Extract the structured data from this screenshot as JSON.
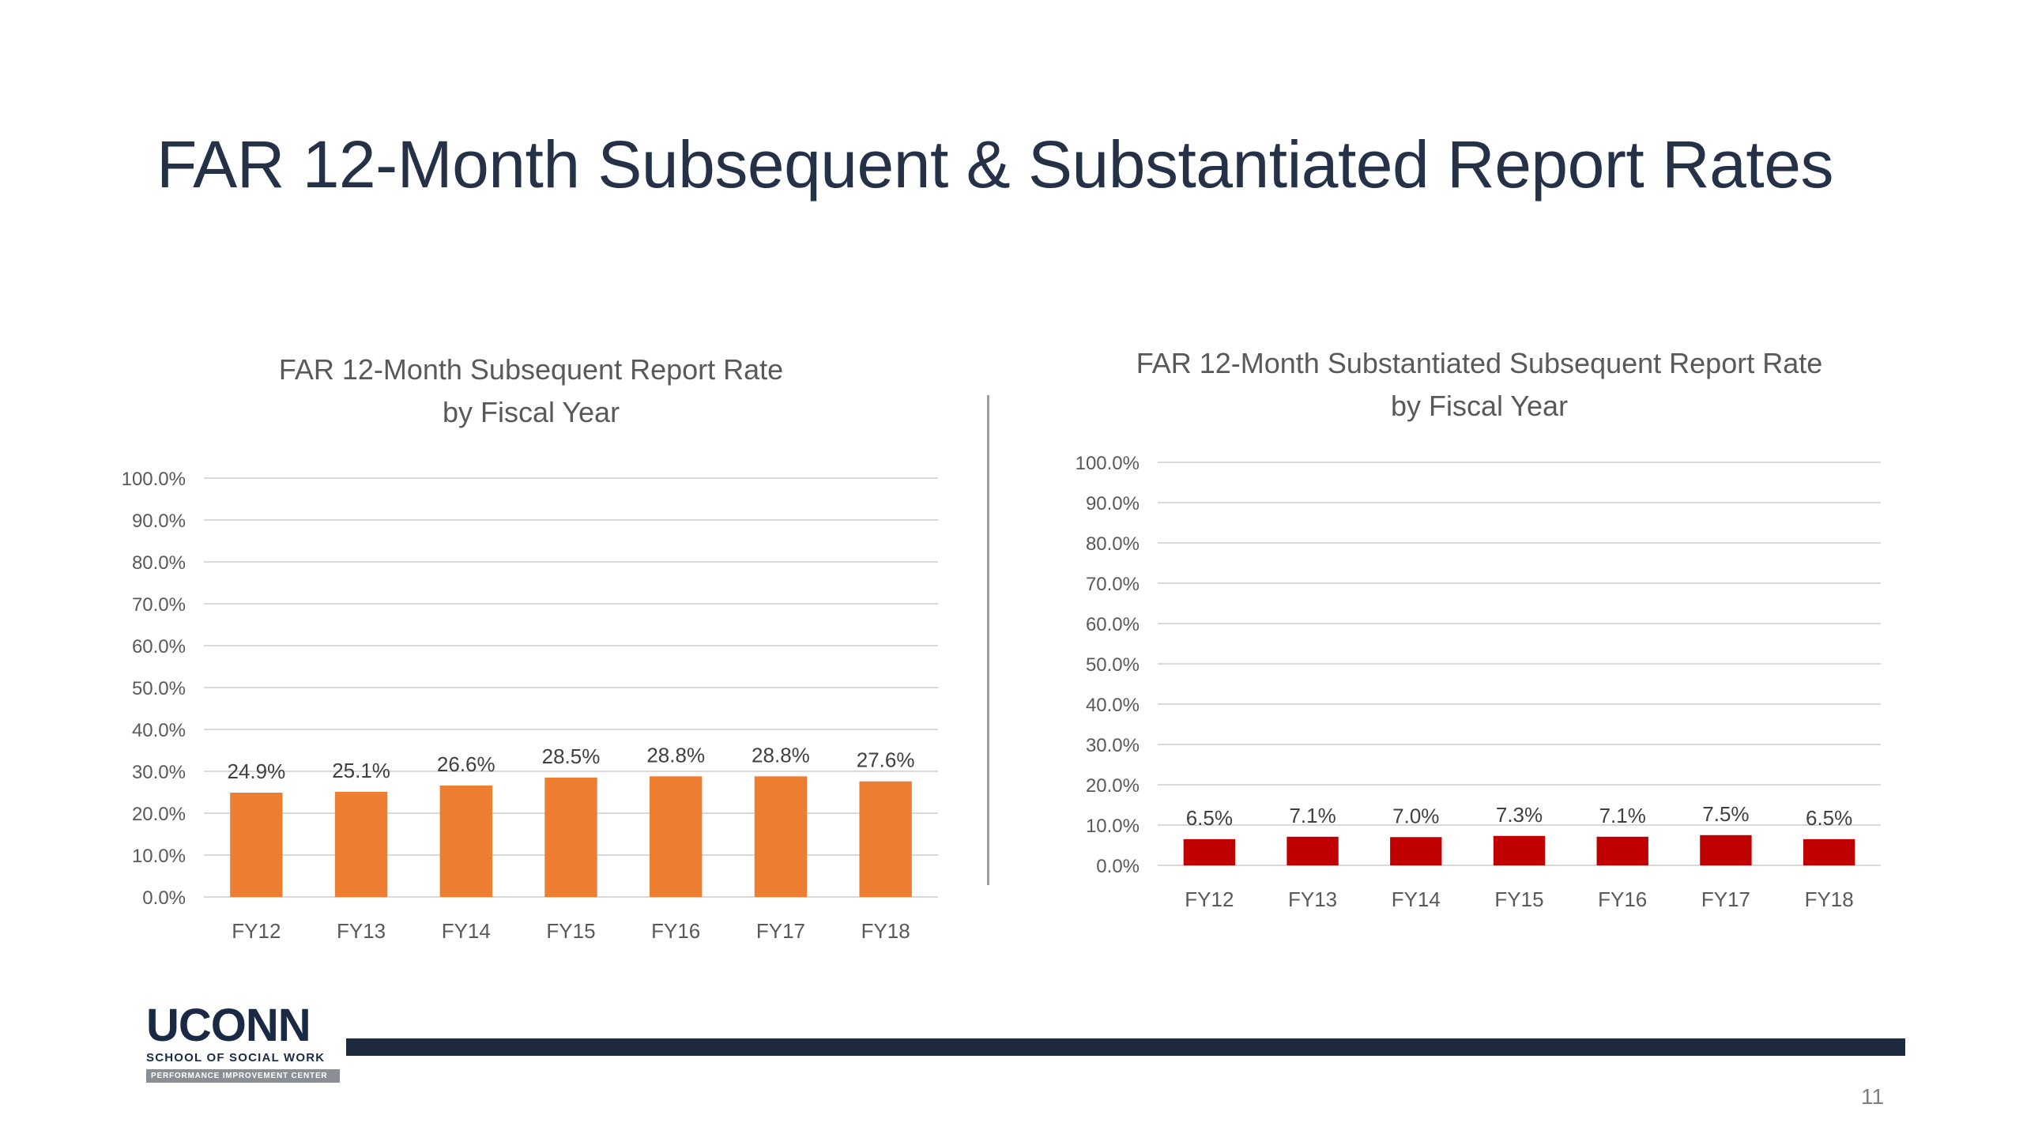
{
  "slide": {
    "title": "FAR 12-Month Subsequent & Substantiated Report Rates",
    "page_number": "11"
  },
  "logo": {
    "wordmark": "UCONN",
    "subtitle": "SCHOOL OF SOCIAL WORK",
    "band": "PERFORMANCE IMPROVEMENT CENTER"
  },
  "colors": {
    "title": "#243147",
    "left_bars": "#ED7D31",
    "right_bars": "#C00000",
    "footer_bar": "#1E2A3D"
  },
  "chart_data": [
    {
      "type": "bar",
      "title_lines": [
        "FAR 12-Month Subsequent Report Rate",
        "by Fiscal Year"
      ],
      "categories": [
        "FY12",
        "FY13",
        "FY14",
        "FY15",
        "FY16",
        "FY17",
        "FY18"
      ],
      "values": [
        24.9,
        25.1,
        26.6,
        28.5,
        28.8,
        28.8,
        27.6
      ],
      "value_labels": [
        "24.9%",
        "25.1%",
        "26.6%",
        "28.5%",
        "28.8%",
        "28.8%",
        "27.6%"
      ],
      "ylim": [
        0,
        100
      ],
      "y_ticks": [
        0,
        10,
        20,
        30,
        40,
        50,
        60,
        70,
        80,
        90,
        100
      ],
      "y_tick_labels": [
        "0.0%",
        "10.0%",
        "20.0%",
        "30.0%",
        "40.0%",
        "50.0%",
        "60.0%",
        "70.0%",
        "80.0%",
        "90.0%",
        "100.0%"
      ],
      "grid": true,
      "color": "#ED7D31"
    },
    {
      "type": "bar",
      "title_lines": [
        "FAR 12-Month Substantiated Subsequent Report Rate",
        "by Fiscal Year"
      ],
      "categories": [
        "FY12",
        "FY13",
        "FY14",
        "FY15",
        "FY16",
        "FY17",
        "FY18"
      ],
      "values": [
        6.5,
        7.1,
        7.0,
        7.3,
        7.1,
        7.5,
        6.5
      ],
      "value_labels": [
        "6.5%",
        "7.1%",
        "7.0%",
        "7.3%",
        "7.1%",
        "7.5%",
        "6.5%"
      ],
      "ylim": [
        0,
        100
      ],
      "y_ticks": [
        0,
        10,
        20,
        30,
        40,
        50,
        60,
        70,
        80,
        90,
        100
      ],
      "y_tick_labels": [
        "0.0%",
        "10.0%",
        "20.0%",
        "30.0%",
        "40.0%",
        "50.0%",
        "60.0%",
        "70.0%",
        "80.0%",
        "90.0%",
        "100.0%"
      ],
      "grid": true,
      "color": "#C00000"
    }
  ]
}
